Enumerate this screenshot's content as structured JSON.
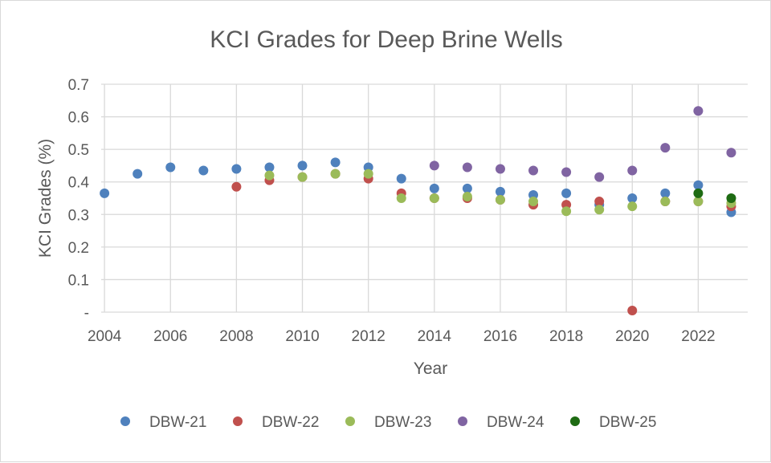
{
  "chart_data": {
    "type": "scatter",
    "title": "KCI Grades for Deep Brine Wells",
    "xlabel": "Year",
    "ylabel": "KCI Grades (%)",
    "xlim": [
      2003.9,
      2023.5
    ],
    "ylim": [
      0,
      0.7
    ],
    "x_ticks": [
      2004,
      2006,
      2008,
      2010,
      2012,
      2014,
      2016,
      2018,
      2020,
      2022
    ],
    "x_tick_labels": [
      "2004",
      "2006",
      "2008",
      "2010",
      "2012",
      "2014",
      "2016",
      "2018",
      "2020",
      "2022"
    ],
    "y_ticks": [
      0,
      0.1,
      0.2,
      0.3,
      0.4,
      0.5,
      0.6,
      0.7
    ],
    "y_tick_labels": [
      "-",
      "0.1",
      "0.2",
      "0.3",
      "0.4",
      "0.5",
      "0.6",
      "0.7"
    ],
    "grid": true,
    "legend_position": "bottom",
    "series": [
      {
        "name": "DBW-21",
        "color": "#4f81bd",
        "points": [
          [
            2004,
            0.365
          ],
          [
            2005,
            0.425
          ],
          [
            2006,
            0.445
          ],
          [
            2007,
            0.435
          ],
          [
            2008,
            0.44
          ],
          [
            2009,
            0.445
          ],
          [
            2010,
            0.45
          ],
          [
            2011,
            0.46
          ],
          [
            2012,
            0.445
          ],
          [
            2013,
            0.41
          ],
          [
            2014,
            0.38
          ],
          [
            2015,
            0.38
          ],
          [
            2016,
            0.37
          ],
          [
            2017,
            0.36
          ],
          [
            2018,
            0.365
          ],
          [
            2019,
            0.33
          ],
          [
            2020,
            0.35
          ],
          [
            2021,
            0.365
          ],
          [
            2022,
            0.39
          ],
          [
            2023,
            0.307
          ]
        ]
      },
      {
        "name": "DBW-22",
        "color": "#c0504d",
        "points": [
          [
            2008,
            0.385
          ],
          [
            2009,
            0.405
          ],
          [
            2010,
            0.415
          ],
          [
            2011,
            0.425
          ],
          [
            2012,
            0.41
          ],
          [
            2013,
            0.365
          ],
          [
            2014,
            0.35
          ],
          [
            2015,
            0.35
          ],
          [
            2016,
            0.345
          ],
          [
            2017,
            0.33
          ],
          [
            2018,
            0.33
          ],
          [
            2019,
            0.34
          ],
          [
            2020,
            0.005
          ],
          [
            2021,
            0.34
          ],
          [
            2022,
            0.34
          ],
          [
            2023,
            0.325
          ]
        ]
      },
      {
        "name": "DBW-23",
        "color": "#9bbb59",
        "points": [
          [
            2009,
            0.42
          ],
          [
            2010,
            0.415
          ],
          [
            2011,
            0.425
          ],
          [
            2012,
            0.425
          ],
          [
            2013,
            0.35
          ],
          [
            2014,
            0.35
          ],
          [
            2015,
            0.355
          ],
          [
            2016,
            0.345
          ],
          [
            2017,
            0.34
          ],
          [
            2018,
            0.31
          ],
          [
            2019,
            0.315
          ],
          [
            2020,
            0.325
          ],
          [
            2021,
            0.34
          ],
          [
            2022,
            0.34
          ],
          [
            2023,
            0.335
          ]
        ]
      },
      {
        "name": "DBW-24",
        "color": "#8064a2",
        "points": [
          [
            2014,
            0.45
          ],
          [
            2015,
            0.445
          ],
          [
            2016,
            0.44
          ],
          [
            2017,
            0.435
          ],
          [
            2018,
            0.43
          ],
          [
            2019,
            0.415
          ],
          [
            2020,
            0.435
          ],
          [
            2021,
            0.505
          ],
          [
            2022,
            0.618
          ],
          [
            2023,
            0.49
          ]
        ]
      },
      {
        "name": "DBW-25",
        "color": "#1e6b13",
        "points": [
          [
            2022,
            0.365
          ],
          [
            2023,
            0.35
          ]
        ]
      }
    ]
  }
}
